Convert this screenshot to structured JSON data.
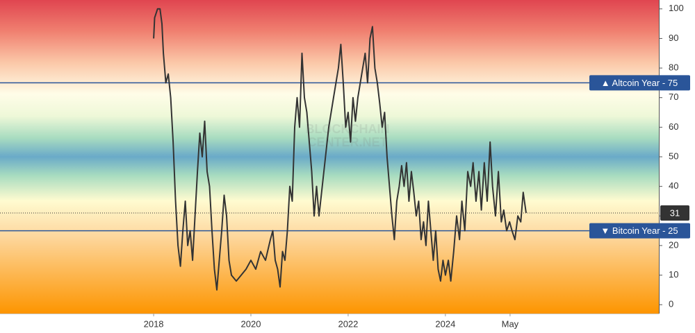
{
  "chart_data": {
    "type": "line",
    "watermark": [
      "BLOCKCHAIN",
      "CENTER.NET"
    ],
    "x": [
      2018.0,
      2018.02,
      2018.08,
      2018.13,
      2018.17,
      2018.2,
      2018.25,
      2018.3,
      2018.35,
      2018.4,
      2018.45,
      2018.5,
      2018.55,
      2018.6,
      2018.65,
      2018.7,
      2018.75,
      2018.8,
      2018.85,
      2018.9,
      2018.95,
      2019.0,
      2019.05,
      2019.1,
      2019.15,
      2019.2,
      2019.25,
      2019.3,
      2019.35,
      2019.4,
      2019.45,
      2019.5,
      2019.55,
      2019.6,
      2019.7,
      2019.8,
      2019.9,
      2020.0,
      2020.1,
      2020.2,
      2020.3,
      2020.4,
      2020.45,
      2020.5,
      2020.55,
      2020.6,
      2020.65,
      2020.7,
      2020.75,
      2020.8,
      2020.85,
      2020.9,
      2020.95,
      2021.0,
      2021.05,
      2021.1,
      2021.15,
      2021.2,
      2021.25,
      2021.3,
      2021.35,
      2021.4,
      2021.5,
      2021.6,
      2021.7,
      2021.8,
      2021.85,
      2021.9,
      2021.95,
      2022.0,
      2022.05,
      2022.1,
      2022.15,
      2022.2,
      2022.3,
      2022.35,
      2022.4,
      2022.45,
      2022.5,
      2022.55,
      2022.6,
      2022.65,
      2022.7,
      2022.75,
      2022.8,
      2022.85,
      2022.9,
      2022.95,
      2023.0,
      2023.05,
      2023.1,
      2023.15,
      2023.2,
      2023.25,
      2023.3,
      2023.35,
      2023.4,
      2023.45,
      2023.5,
      2023.55,
      2023.6,
      2023.65,
      2023.7,
      2023.75,
      2023.8,
      2023.85,
      2023.9,
      2023.95,
      2024.0,
      2024.06,
      2024.11,
      2024.17,
      2024.23,
      2024.29,
      2024.34,
      2024.4,
      2024.46,
      2024.52,
      2024.57,
      2024.63,
      2024.69,
      2024.74,
      2024.8,
      2024.86,
      2024.92,
      2024.97,
      2025.03,
      2025.09,
      2025.15,
      2025.2,
      2025.26,
      2025.32,
      2025.37,
      2025.43,
      2025.49,
      2025.55,
      2025.6,
      2025.66
    ],
    "series": [
      {
        "color": "#333333",
        "values": [
          90,
          97,
          100,
          100,
          95,
          85,
          75,
          78,
          70,
          55,
          35,
          20,
          13,
          25,
          35,
          20,
          25,
          15,
          30,
          45,
          58,
          50,
          62,
          45,
          40,
          25,
          12,
          5,
          15,
          25,
          37,
          30,
          15,
          10,
          8,
          10,
          12,
          15,
          12,
          18,
          15,
          22,
          25,
          15,
          12,
          6,
          18,
          15,
          25,
          40,
          35,
          60,
          70,
          60,
          85,
          70,
          65,
          55,
          45,
          30,
          40,
          30,
          45,
          60,
          70,
          80,
          88,
          75,
          60,
          65,
          55,
          70,
          62,
          70,
          80,
          85,
          75,
          90,
          94,
          80,
          75,
          68,
          60,
          65,
          50,
          40,
          30,
          22,
          35,
          40,
          47,
          40,
          48,
          35,
          45,
          38,
          30,
          35,
          22,
          28,
          20,
          35,
          25,
          15,
          25,
          12,
          8,
          15,
          10,
          15,
          8,
          18,
          30,
          22,
          35,
          25,
          45,
          40,
          48,
          35,
          45,
          32,
          48,
          35,
          55,
          40,
          30,
          45,
          28,
          32,
          25,
          28,
          25,
          22,
          30,
          28,
          38,
          31
        ]
      }
    ],
    "xlim": [
      2014.84,
      2028.39
    ],
    "xticks": [
      {
        "value": 2018,
        "label": "2018"
      },
      {
        "value": 2020,
        "label": "2020"
      },
      {
        "value": 2022,
        "label": "2022"
      },
      {
        "value": 2024,
        "label": "2024"
      },
      {
        "value": 2025.33,
        "label": "May"
      }
    ],
    "ylim": [
      -3,
      103
    ],
    "yticks": [
      0,
      10,
      20,
      30,
      40,
      50,
      60,
      70,
      80,
      90,
      100
    ],
    "reference_lines": [
      {
        "value": 75,
        "label": "▲ Altcoin Year - 75",
        "color": "#2a5599"
      },
      {
        "value": 25,
        "label": "▼ Bitcoin Year - 25",
        "color": "#2a5599"
      }
    ],
    "last_value": 31
  }
}
